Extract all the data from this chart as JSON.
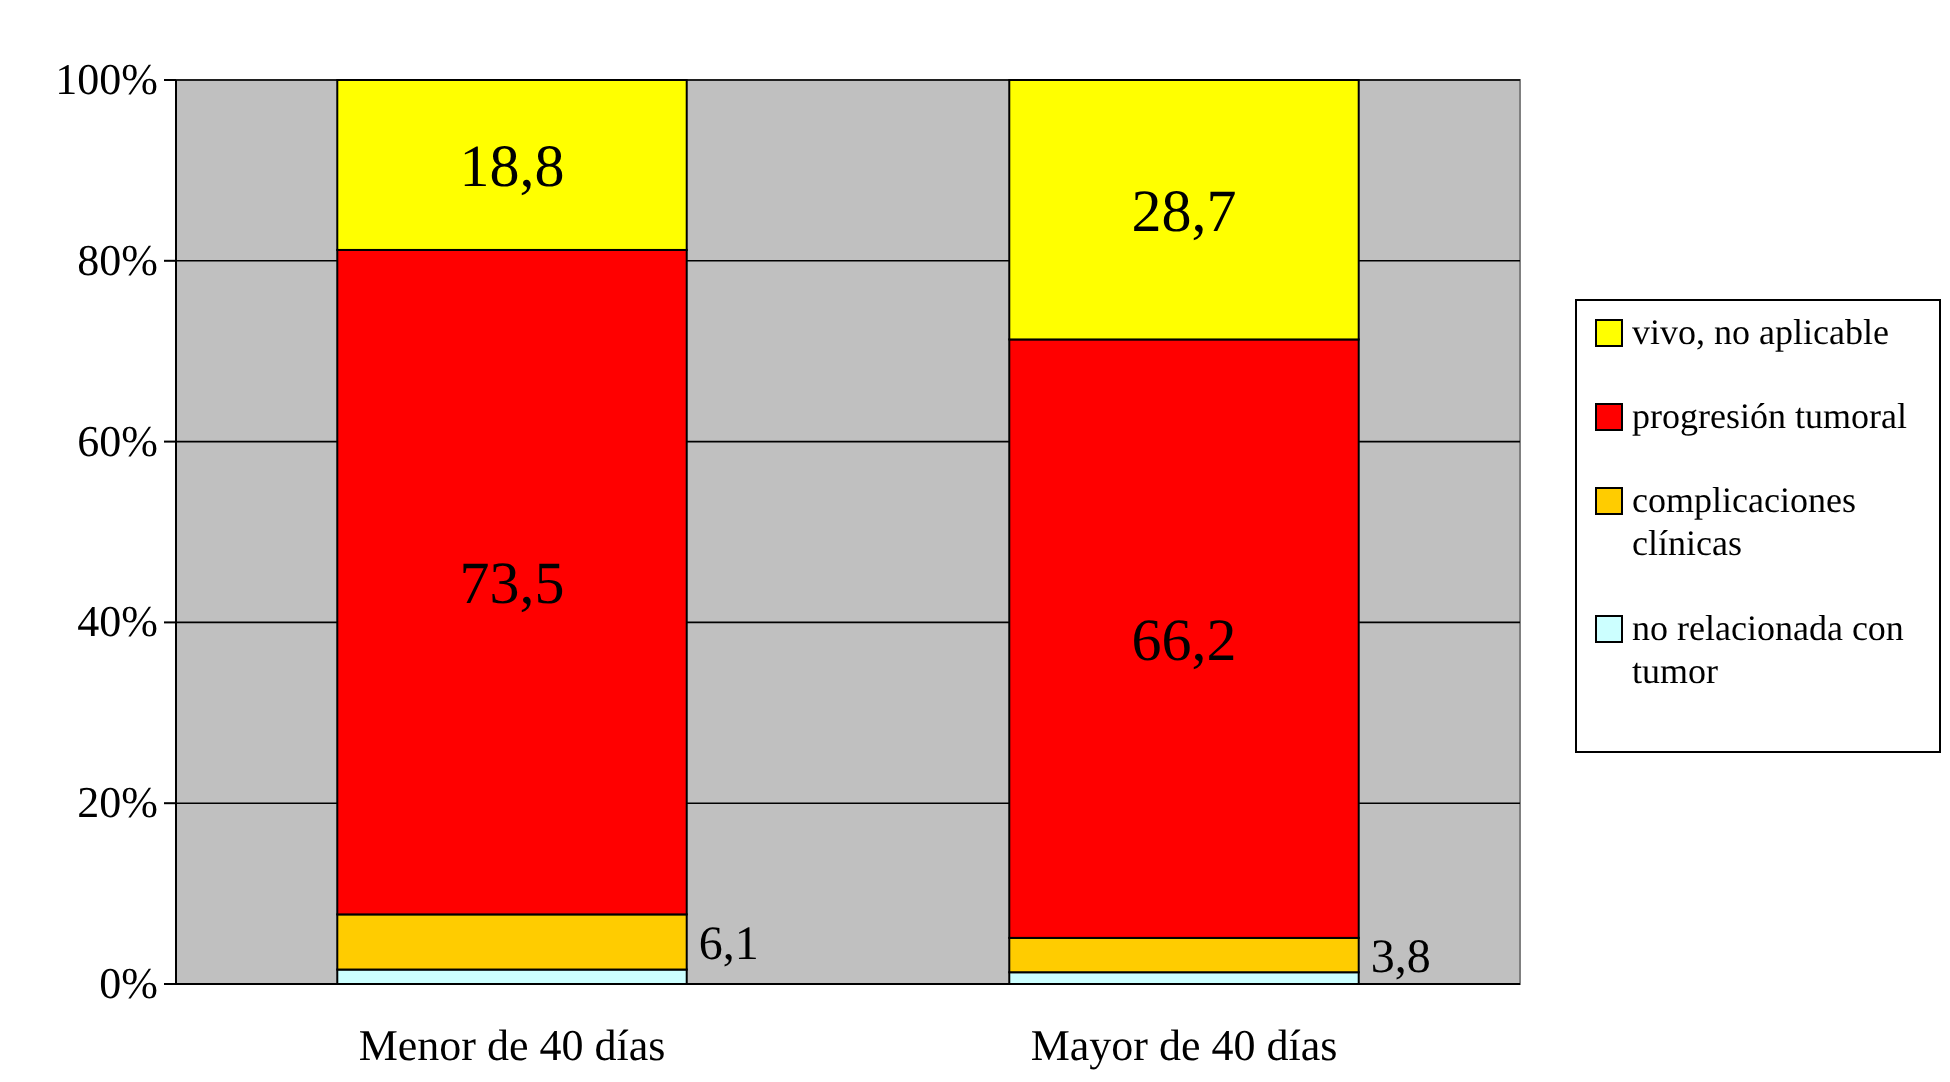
{
  "chart_data": {
    "type": "bar",
    "stacked": true,
    "categories": [
      "Menor de 40 días",
      "Mayor de 40 días"
    ],
    "series": [
      {
        "name": "no relacionada con tumor",
        "color": "#ccffff",
        "values": [
          1.6,
          1.3
        ],
        "value_labels": [
          null,
          null
        ]
      },
      {
        "name": "complicaciones clínicas",
        "color": "#ffcc00",
        "values": [
          6.1,
          3.8
        ],
        "value_labels": [
          "6,1",
          "3,8"
        ]
      },
      {
        "name": "progresión tumoral",
        "color": "#ff0000",
        "values": [
          73.5,
          66.2
        ],
        "value_labels": [
          "73,5",
          "66,2"
        ]
      },
      {
        "name": "vivo, no aplicable",
        "color": "#ffff00",
        "values": [
          18.8,
          28.7
        ],
        "value_labels": [
          "18,8",
          "28,7"
        ]
      }
    ],
    "ylim": [
      0,
      100
    ],
    "yticks": [
      {
        "value": 0,
        "label": "0%"
      },
      {
        "value": 20,
        "label": "20%"
      },
      {
        "value": 40,
        "label": "40%"
      },
      {
        "value": 60,
        "label": "60%"
      },
      {
        "value": 80,
        "label": "80%"
      },
      {
        "value": 100,
        "label": "100%"
      }
    ],
    "grid": "y",
    "legend": "right"
  }
}
